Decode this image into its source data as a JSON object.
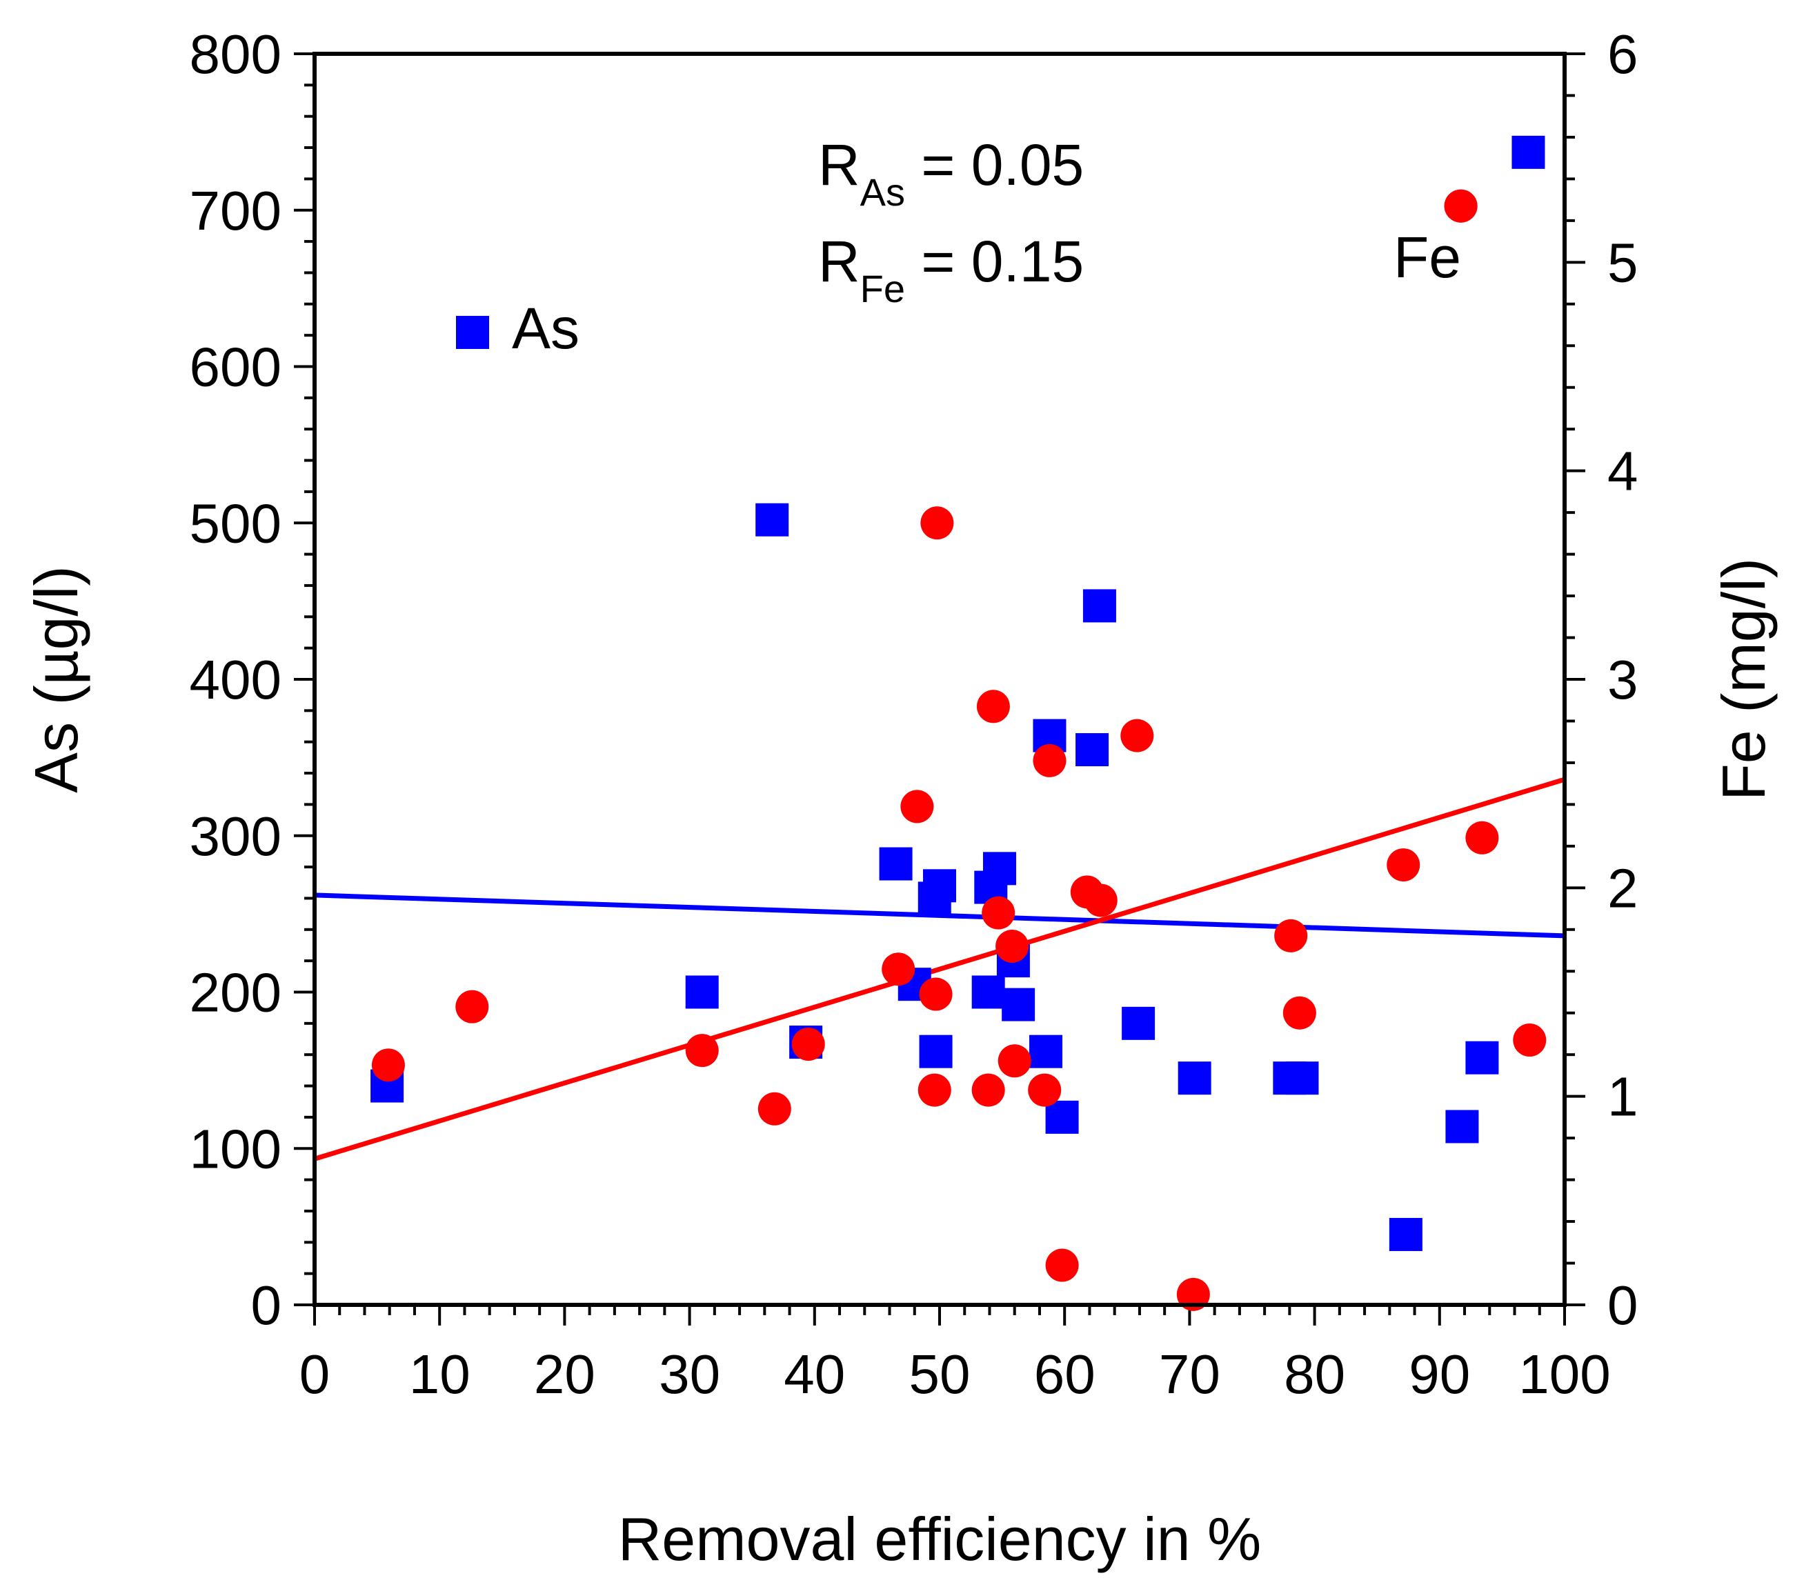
{
  "chart_data": {
    "type": "scatter",
    "xlabel": "Removal efficiency in %",
    "ylabel": "As (µg/l)",
    "y2label": "Fe (mg/l)",
    "xlim": [
      0,
      100
    ],
    "ylim": [
      0,
      800
    ],
    "y2lim": [
      0,
      6
    ],
    "xticks": [
      0,
      10,
      20,
      30,
      40,
      50,
      60,
      70,
      80,
      90,
      100
    ],
    "yticks": [
      0,
      100,
      200,
      300,
      400,
      500,
      600,
      700,
      800
    ],
    "y2ticks": [
      0,
      1,
      2,
      3,
      4,
      5,
      6
    ],
    "annotations": {
      "r_as": {
        "main": "R",
        "sub": "As",
        "rest": " = 0.05"
      },
      "r_fe": {
        "main": "R",
        "sub": "Fe",
        "rest": " = 0.15"
      }
    },
    "colors": {
      "as": "#0000ff",
      "fe": "#ff0000"
    },
    "series": [
      {
        "name": "As",
        "axis": "left",
        "marker": "square",
        "color": "#0000ff",
        "points": [
          [
            5.8,
            140
          ],
          [
            31,
            200
          ],
          [
            36.6,
            502
          ],
          [
            39.3,
            168
          ],
          [
            46.5,
            282
          ],
          [
            48,
            205
          ],
          [
            49.6,
            260
          ],
          [
            49.7,
            162
          ],
          [
            50,
            268
          ],
          [
            53.9,
            200
          ],
          [
            54.1,
            267
          ],
          [
            54.8,
            279
          ],
          [
            55.9,
            220
          ],
          [
            56.3,
            192
          ],
          [
            58.5,
            162
          ],
          [
            58.8,
            364
          ],
          [
            59.8,
            120
          ],
          [
            62.2,
            355
          ],
          [
            62.8,
            447
          ],
          [
            65.9,
            180
          ],
          [
            70.4,
            145
          ],
          [
            78,
            145
          ],
          [
            79,
            145
          ],
          [
            87.3,
            45
          ],
          [
            91.8,
            114
          ],
          [
            93.4,
            158
          ],
          [
            97.1,
            737
          ]
        ],
        "fit": {
          "x": [
            0,
            100
          ],
          "y": [
            262,
            236
          ]
        }
      },
      {
        "name": "Fe",
        "axis": "right",
        "marker": "circle",
        "color": "#ff0000",
        "points": [
          [
            5.9,
            1.15
          ],
          [
            12.6,
            1.43
          ],
          [
            31,
            1.22
          ],
          [
            36.8,
            0.94
          ],
          [
            39.5,
            1.25
          ],
          [
            46.7,
            1.61
          ],
          [
            48.2,
            2.39
          ],
          [
            49.6,
            1.03
          ],
          [
            49.7,
            1.49
          ],
          [
            49.8,
            3.75
          ],
          [
            53.9,
            1.03
          ],
          [
            54.3,
            2.87
          ],
          [
            54.7,
            1.88
          ],
          [
            55.8,
            1.72
          ],
          [
            56,
            1.17
          ],
          [
            58.4,
            1.03
          ],
          [
            58.8,
            2.61
          ],
          [
            59.8,
            0.19
          ],
          [
            61.8,
            1.98
          ],
          [
            62.9,
            1.94
          ],
          [
            65.8,
            2.73
          ],
          [
            70.3,
            0.05
          ],
          [
            78.1,
            1.77
          ],
          [
            78.8,
            1.4
          ],
          [
            87.1,
            2.11
          ],
          [
            91.7,
            5.27
          ],
          [
            93.4,
            2.24
          ],
          [
            97.2,
            1.27
          ]
        ],
        "fit": {
          "x": [
            0,
            100
          ],
          "y": [
            0.7,
            2.52
          ]
        }
      }
    ]
  }
}
